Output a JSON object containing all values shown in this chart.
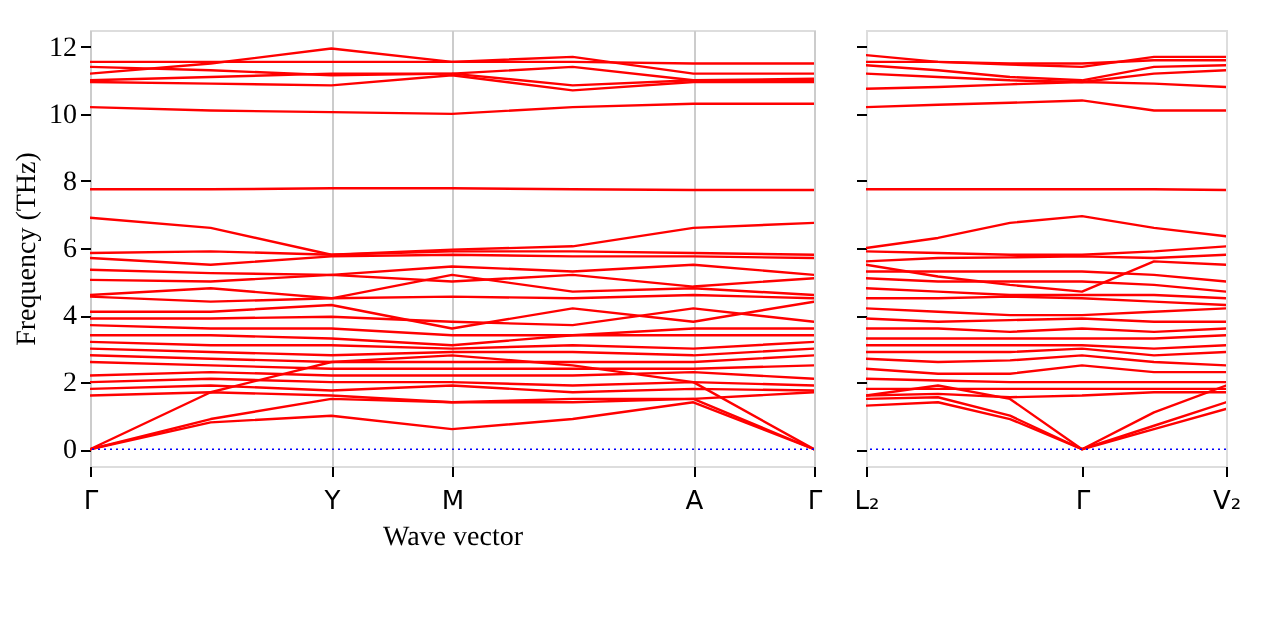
{
  "chart_data": [
    {
      "type": "line",
      "xlabel": "Wave vector",
      "ylabel": "Frequency (THz)",
      "ylim": [
        -0.5,
        12.5
      ],
      "categories": [
        "Γ",
        null,
        "Y",
        "M",
        null,
        "A",
        "Γ"
      ],
      "yticks": [
        0,
        2,
        4,
        6,
        8,
        10,
        12
      ],
      "grid": "x",
      "ref_lines": [
        {
          "axis": "y",
          "value": 0,
          "color": "#0000ff",
          "line_style": "dotted"
        }
      ],
      "series": [
        {
          "color": "#ff0000",
          "values": [
            11.2,
            11.5,
            11.95,
            11.55,
            11.7,
            11.2,
            11.2
          ]
        },
        {
          "color": "#ff0000",
          "values": [
            11.55,
            11.55,
            11.55,
            11.55,
            11.55,
            11.5,
            11.5
          ]
        },
        {
          "color": "#ff0000",
          "values": [
            11.4,
            11.3,
            11.15,
            11.2,
            11.4,
            11.0,
            11.0
          ]
        },
        {
          "color": "#ff0000",
          "values": [
            11.0,
            11.1,
            11.2,
            11.2,
            10.85,
            11.0,
            11.05
          ]
        },
        {
          "color": "#ff0000",
          "values": [
            10.95,
            10.9,
            10.85,
            11.15,
            10.7,
            10.95,
            10.95
          ]
        },
        {
          "color": "#ff0000",
          "values": [
            10.2,
            10.1,
            10.05,
            10.0,
            10.2,
            10.3,
            10.3
          ]
        },
        {
          "color": "#ff0000",
          "values": [
            7.75,
            7.75,
            7.78,
            7.78,
            7.75,
            7.73,
            7.73
          ]
        },
        {
          "color": "#ff0000",
          "values": [
            6.9,
            6.6,
            5.8,
            5.95,
            6.05,
            6.6,
            6.75
          ]
        },
        {
          "color": "#ff0000",
          "values": [
            5.85,
            5.9,
            5.8,
            5.9,
            5.9,
            5.85,
            5.8
          ]
        },
        {
          "color": "#ff0000",
          "values": [
            5.7,
            5.5,
            5.75,
            5.8,
            5.75,
            5.75,
            5.7
          ]
        },
        {
          "color": "#ff0000",
          "values": [
            5.35,
            5.25,
            5.2,
            5.45,
            5.3,
            5.5,
            5.2
          ]
        },
        {
          "color": "#ff0000",
          "values": [
            5.05,
            5.0,
            5.2,
            5.0,
            5.2,
            4.85,
            5.1
          ]
        },
        {
          "color": "#ff0000",
          "values": [
            4.6,
            4.8,
            4.5,
            5.2,
            4.7,
            4.8,
            4.6
          ]
        },
        {
          "color": "#ff0000",
          "values": [
            4.55,
            4.4,
            4.5,
            4.55,
            4.5,
            4.6,
            4.5
          ]
        },
        {
          "color": "#ff0000",
          "values": [
            4.1,
            4.1,
            4.3,
            3.6,
            4.2,
            3.8,
            4.4
          ]
        },
        {
          "color": "#ff0000",
          "values": [
            3.9,
            3.9,
            3.95,
            3.8,
            3.7,
            4.2,
            3.8
          ]
        },
        {
          "color": "#ff0000",
          "values": [
            3.7,
            3.6,
            3.6,
            3.4,
            3.4,
            3.6,
            3.6
          ]
        },
        {
          "color": "#ff0000",
          "values": [
            3.4,
            3.4,
            3.3,
            3.1,
            3.4,
            3.4,
            3.4
          ]
        },
        {
          "color": "#ff0000",
          "values": [
            3.2,
            3.1,
            3.1,
            3.0,
            3.1,
            3.0,
            3.2
          ]
        },
        {
          "color": "#ff0000",
          "values": [
            3.0,
            2.9,
            2.8,
            2.9,
            2.9,
            2.8,
            3.0
          ]
        },
        {
          "color": "#ff0000",
          "values": [
            2.8,
            2.7,
            2.6,
            2.6,
            2.6,
            2.6,
            2.8
          ]
        },
        {
          "color": "#ff0000",
          "values": [
            2.6,
            2.5,
            2.4,
            2.4,
            2.4,
            2.4,
            2.5
          ]
        },
        {
          "color": "#ff0000",
          "values": [
            2.2,
            2.3,
            2.2,
            2.2,
            2.2,
            2.3,
            2.1
          ]
        },
        {
          "color": "#ff0000",
          "values": [
            2.0,
            2.1,
            2.0,
            2.0,
            1.9,
            2.0,
            1.9
          ]
        },
        {
          "color": "#ff0000",
          "values": [
            1.8,
            1.9,
            1.75,
            1.9,
            1.7,
            1.8,
            1.75
          ]
        },
        {
          "color": "#ff0000",
          "values": [
            1.6,
            1.7,
            1.6,
            1.4,
            1.5,
            1.5,
            1.7
          ]
        },
        {
          "color": "#ff0000",
          "values": [
            0,
            1.7,
            2.6,
            2.8,
            2.5,
            2.0,
            0
          ]
        },
        {
          "color": "#ff0000",
          "values": [
            0,
            0.9,
            1.5,
            1.4,
            1.4,
            1.5,
            0
          ]
        },
        {
          "color": "#ff0000",
          "values": [
            0,
            0.8,
            1.0,
            0.6,
            0.9,
            1.4,
            0
          ]
        }
      ]
    },
    {
      "type": "line",
      "ylim": [
        -0.5,
        12.5
      ],
      "tick_labels": "x",
      "categories": [
        "L₂",
        null,
        null,
        "Γ",
        null,
        "V₂"
      ],
      "yticks": [
        0,
        2,
        4,
        6,
        8,
        10,
        12
      ],
      "ref_lines": [
        {
          "axis": "y",
          "value": 0,
          "color": "#0000ff",
          "line_style": "dotted"
        }
      ],
      "series": [
        {
          "color": "#ff0000",
          "values": [
            11.75,
            11.55,
            11.47,
            11.4,
            11.7,
            11.7
          ]
        },
        {
          "color": "#ff0000",
          "values": [
            11.55,
            11.55,
            11.5,
            11.5,
            11.6,
            11.6
          ]
        },
        {
          "color": "#ff0000",
          "values": [
            11.45,
            11.3,
            11.1,
            11.0,
            11.4,
            11.45
          ]
        },
        {
          "color": "#ff0000",
          "values": [
            11.2,
            11.1,
            11.0,
            10.95,
            11.2,
            11.3
          ]
        },
        {
          "color": "#ff0000",
          "values": [
            10.75,
            10.8,
            10.88,
            10.95,
            10.9,
            10.8
          ]
        },
        {
          "color": "#ff0000",
          "values": [
            10.2,
            10.27,
            10.33,
            10.4,
            10.1,
            10.1
          ]
        },
        {
          "color": "#ff0000",
          "values": [
            7.75,
            7.75,
            7.75,
            7.75,
            7.75,
            7.73
          ]
        },
        {
          "color": "#ff0000",
          "values": [
            6.0,
            6.3,
            6.75,
            6.95,
            6.6,
            6.35
          ]
        },
        {
          "color": "#ff0000",
          "values": [
            5.9,
            5.85,
            5.8,
            5.8,
            5.9,
            6.05
          ]
        },
        {
          "color": "#ff0000",
          "values": [
            5.6,
            5.7,
            5.72,
            5.75,
            5.7,
            5.8
          ]
        },
        {
          "color": "#ff0000",
          "values": [
            5.5,
            5.15,
            4.9,
            4.7,
            5.6,
            5.5
          ]
        },
        {
          "color": "#ff0000",
          "values": [
            5.3,
            5.3,
            5.3,
            5.3,
            5.2,
            5.0
          ]
        },
        {
          "color": "#ff0000",
          "values": [
            5.1,
            5.0,
            5.0,
            5.0,
            4.9,
            4.7
          ]
        },
        {
          "color": "#ff0000",
          "values": [
            4.8,
            4.7,
            4.6,
            4.6,
            4.6,
            4.5
          ]
        },
        {
          "color": "#ff0000",
          "values": [
            4.5,
            4.5,
            4.55,
            4.5,
            4.4,
            4.3
          ]
        },
        {
          "color": "#ff0000",
          "values": [
            4.2,
            4.1,
            4.0,
            4.0,
            4.1,
            4.2
          ]
        },
        {
          "color": "#ff0000",
          "values": [
            3.9,
            3.8,
            3.85,
            3.9,
            3.8,
            3.8
          ]
        },
        {
          "color": "#ff0000",
          "values": [
            3.6,
            3.6,
            3.5,
            3.6,
            3.5,
            3.6
          ]
        },
        {
          "color": "#ff0000",
          "values": [
            3.3,
            3.3,
            3.3,
            3.3,
            3.3,
            3.4
          ]
        },
        {
          "color": "#ff0000",
          "values": [
            3.1,
            3.1,
            3.1,
            3.1,
            3.0,
            3.1
          ]
        },
        {
          "color": "#ff0000",
          "values": [
            2.9,
            2.9,
            2.9,
            3.0,
            2.8,
            2.9
          ]
        },
        {
          "color": "#ff0000",
          "values": [
            2.7,
            2.6,
            2.65,
            2.8,
            2.6,
            2.5
          ]
        },
        {
          "color": "#ff0000",
          "values": [
            2.4,
            2.25,
            2.25,
            2.5,
            2.3,
            2.3
          ]
        },
        {
          "color": "#ff0000",
          "values": [
            2.1,
            2.05,
            2.0,
            2.0,
            2.0,
            2.0
          ]
        },
        {
          "color": "#ff0000",
          "values": [
            1.8,
            1.8,
            1.8,
            1.8,
            1.8,
            1.8
          ]
        },
        {
          "color": "#ff0000",
          "values": [
            1.6,
            1.65,
            1.55,
            1.6,
            1.7,
            1.7
          ]
        },
        {
          "color": "#ff0000",
          "values": [
            1.3,
            1.4,
            0.9,
            0,
            1.1,
            1.9
          ]
        },
        {
          "color": "#ff0000",
          "values": [
            1.5,
            1.55,
            1.0,
            0,
            0.7,
            1.4
          ]
        },
        {
          "color": "#ff0000",
          "values": [
            1.6,
            1.9,
            1.5,
            0,
            0.6,
            1.2
          ]
        }
      ]
    }
  ]
}
